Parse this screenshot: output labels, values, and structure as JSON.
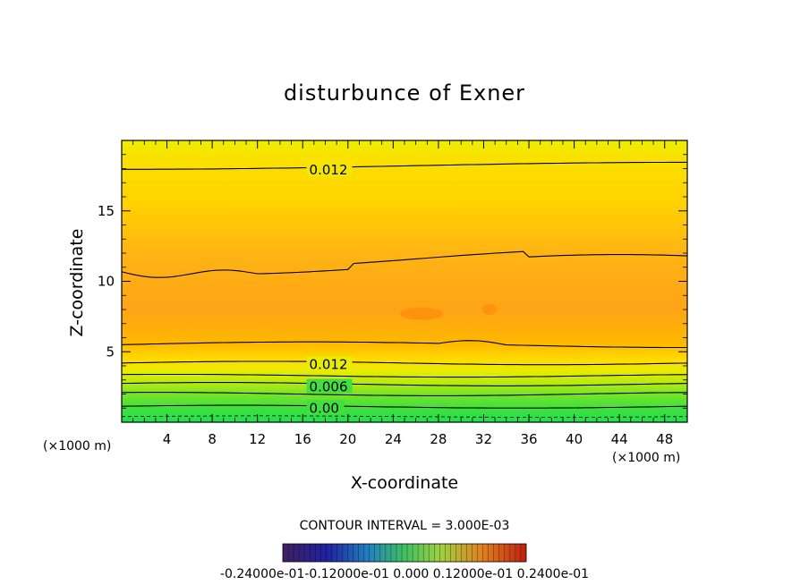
{
  "chart_data": {
    "type": "heatmap",
    "title": "disturbunce of Exner",
    "xlabel": "X-coordinate",
    "ylabel": "Z-coordinate",
    "x_unit": "(×1000 m)",
    "xlim": [
      0,
      50
    ],
    "ylim": [
      0,
      20
    ],
    "x_ticks": [
      4,
      8,
      12,
      16,
      20,
      24,
      28,
      32,
      36,
      40,
      44,
      48
    ],
    "y_ticks": [
      5,
      10,
      15
    ],
    "contour_interval_text": "CONTOUR INTERVAL = 3.000E-03",
    "contour_labels": [
      {
        "text": "0.012",
        "x": 16.5,
        "y": 17.9
      },
      {
        "text": "0.012",
        "x": 16.5,
        "y": 4.1
      },
      {
        "text": "0.006",
        "x": 16.5,
        "y": 2.5
      },
      {
        "text": "0.00",
        "x": 16.5,
        "y": 1.0
      }
    ],
    "colorbar_labels": [
      "-0.2400e-01",
      "-0.1200e-01",
      "0.000",
      "0.1200e-01",
      "0.2400e-01"
    ],
    "colorbar_label_text": "-0.24000e-01-0.12000e-01 0.000 0.12000e-01 0.2400e-01",
    "colors": {
      "field_high": "#ff9a10",
      "field_mid": "#ffc800",
      "field_top": "#f0ec00",
      "field_low": "#22e044"
    }
  }
}
